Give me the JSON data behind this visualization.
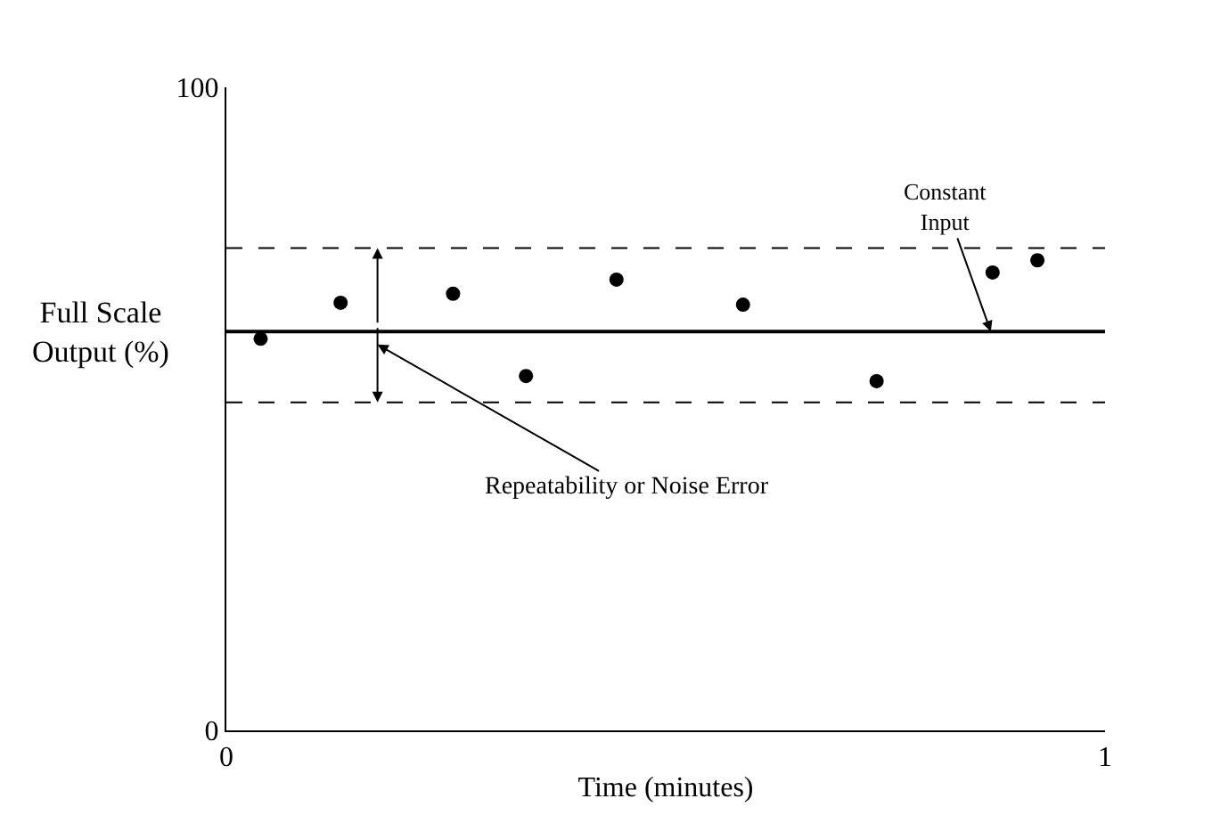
{
  "chart_data": {
    "type": "scatter",
    "xlabel": "Time (minutes)",
    "ylabel": "Full Scale Output (%)",
    "x": [
      0.039,
      0.13,
      0.258,
      0.341,
      0.444,
      0.588,
      0.74,
      0.872,
      0.923
    ],
    "series": [
      {
        "color": "#000000",
        "values": [
          60.9,
          66.5,
          67.9,
          55.1,
          70.1,
          66.2,
          54.3,
          71.2,
          73.1
        ]
      }
    ],
    "marker": "circle",
    "xlim": [
      0,
      1
    ],
    "ylim": [
      0,
      100
    ],
    "xticks": [
      0,
      1
    ],
    "yticks": [
      0,
      100
    ],
    "ref_lines": [
      {
        "axis": "y",
        "value": 62,
        "color": "#000000",
        "line_style": "solid"
      },
      {
        "axis": "y",
        "value": 75,
        "color": "#000000",
        "line_style": "dashed"
      },
      {
        "axis": "y",
        "value": 51,
        "color": "#000000",
        "line_style": "dashed"
      }
    ],
    "annotations": [
      {
        "text": "Constant Input",
        "x": 0.87,
        "y": 62
      },
      "Repeatability or Noise Error"
    ]
  }
}
